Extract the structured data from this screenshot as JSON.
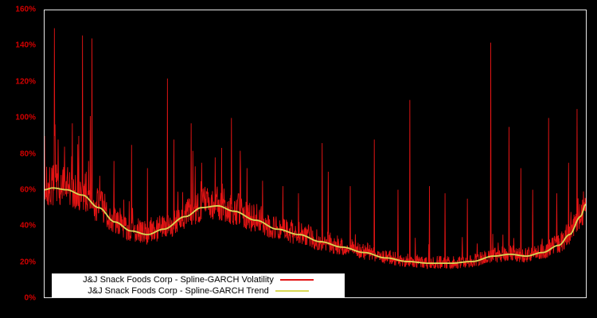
{
  "chart_data": {
    "type": "line",
    "title": "",
    "xlabel": "",
    "ylabel": "",
    "ylim": [
      0,
      160
    ],
    "y_ticks": [
      0,
      20,
      40,
      60,
      80,
      100,
      120,
      140,
      160
    ],
    "y_tick_suffix": "%",
    "grid": false,
    "background_color": "#000000",
    "axis_label_color": "#d40000",
    "legend_position": "bottom-left-inside",
    "series": [
      {
        "name": "J&J Snack Foods Corp - Spline-GARCH Volatility",
        "color": "#e41414",
        "style": "noisy-daily"
      },
      {
        "name": "J&J Snack Foods Corp - Spline-GARCH Trend",
        "color": "#d9d855",
        "style": "smooth-spline"
      }
    ],
    "trend_points": [
      [
        0.0,
        60
      ],
      [
        0.015,
        61
      ],
      [
        0.04,
        60
      ],
      [
        0.07,
        57
      ],
      [
        0.1,
        50
      ],
      [
        0.13,
        42
      ],
      [
        0.16,
        37
      ],
      [
        0.19,
        35
      ],
      [
        0.22,
        38
      ],
      [
        0.26,
        45
      ],
      [
        0.29,
        50
      ],
      [
        0.32,
        51
      ],
      [
        0.35,
        48
      ],
      [
        0.39,
        43
      ],
      [
        0.43,
        38
      ],
      [
        0.47,
        35
      ],
      [
        0.51,
        31
      ],
      [
        0.55,
        28
      ],
      [
        0.59,
        25
      ],
      [
        0.63,
        22
      ],
      [
        0.67,
        20
      ],
      [
        0.71,
        19
      ],
      [
        0.75,
        19
      ],
      [
        0.79,
        20
      ],
      [
        0.83,
        23
      ],
      [
        0.86,
        24
      ],
      [
        0.89,
        23
      ],
      [
        0.92,
        25
      ],
      [
        0.95,
        29
      ],
      [
        0.97,
        35
      ],
      [
        0.99,
        45
      ],
      [
        1.0,
        52
      ]
    ],
    "spikes": [
      [
        0.018,
        150
      ],
      [
        0.025,
        88
      ],
      [
        0.037,
        84
      ],
      [
        0.051,
        97
      ],
      [
        0.063,
        90
      ],
      [
        0.07,
        146
      ],
      [
        0.081,
        76
      ],
      [
        0.128,
        76
      ],
      [
        0.161,
        85
      ],
      [
        0.19,
        72
      ],
      [
        0.227,
        122
      ],
      [
        0.239,
        88
      ],
      [
        0.271,
        97
      ],
      [
        0.29,
        75
      ],
      [
        0.315,
        78
      ],
      [
        0.345,
        100
      ],
      [
        0.374,
        72
      ],
      [
        0.403,
        65
      ],
      [
        0.44,
        62
      ],
      [
        0.469,
        58
      ],
      [
        0.513,
        86
      ],
      [
        0.524,
        70
      ],
      [
        0.565,
        62
      ],
      [
        0.609,
        88
      ],
      [
        0.653,
        60
      ],
      [
        0.675,
        110
      ],
      [
        0.711,
        62
      ],
      [
        0.74,
        58
      ],
      [
        0.781,
        55
      ],
      [
        0.824,
        142
      ],
      [
        0.858,
        95
      ],
      [
        0.88,
        72
      ],
      [
        0.902,
        60
      ],
      [
        0.931,
        100
      ],
      [
        0.946,
        58
      ],
      [
        0.968,
        75
      ],
      [
        0.984,
        105
      ]
    ],
    "wild_zones": [
      [
        0.0,
        0.11,
        0.1,
        0.8
      ],
      [
        0.13,
        0.33,
        0.05,
        0.5
      ],
      [
        0.45,
        0.6,
        0.025,
        0.45
      ],
      [
        0.79,
        1.0,
        0.035,
        0.5
      ]
    ],
    "noise": {
      "seed": 7,
      "samples": 1600,
      "base_low": 0.84,
      "base_high": 1.22,
      "spike_prob": 0.012,
      "spike_extra": 0.6
    }
  }
}
